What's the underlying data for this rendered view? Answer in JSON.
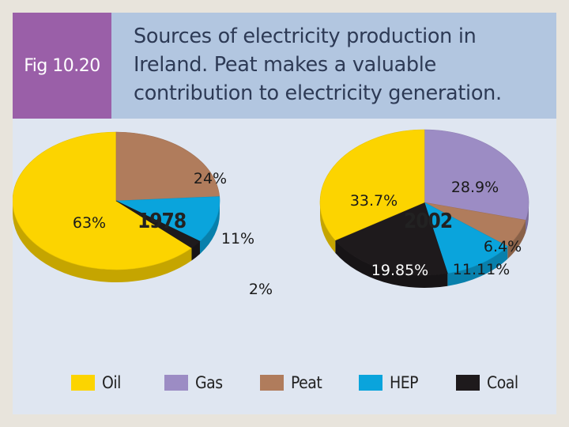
{
  "fig_label": "Fig 10.20",
  "caption_lines": [
    "Sources of electricity production in",
    "Ireland. Peat makes a valuable",
    "contribution to electricity generation."
  ],
  "colors": {
    "Oil": "#fcd400",
    "Gas": "#9c8cc4",
    "Peat": "#b07c5c",
    "HEP": "#0aa4dc",
    "Coal": "#1e1a1c"
  },
  "chart_data": [
    {
      "type": "pie",
      "title": "1978",
      "labels": [
        "Oil",
        "Peat",
        "HEP",
        "Coal"
      ],
      "values": [
        63,
        24,
        11,
        2
      ],
      "value_labels": [
        "63%",
        "24%",
        "11%",
        "2%"
      ]
    },
    {
      "type": "pie",
      "title": "2002",
      "labels": [
        "Gas",
        "Peat",
        "HEP",
        "Coal",
        "Oil"
      ],
      "values": [
        28.9,
        6.4,
        11.11,
        19.85,
        33.7
      ],
      "value_labels": [
        "28.9%",
        "6.4%",
        "11.11%",
        "19.85%",
        "33.7%"
      ]
    }
  ],
  "legend": [
    "Oil",
    "Gas",
    "Peat",
    "HEP",
    "Coal"
  ]
}
